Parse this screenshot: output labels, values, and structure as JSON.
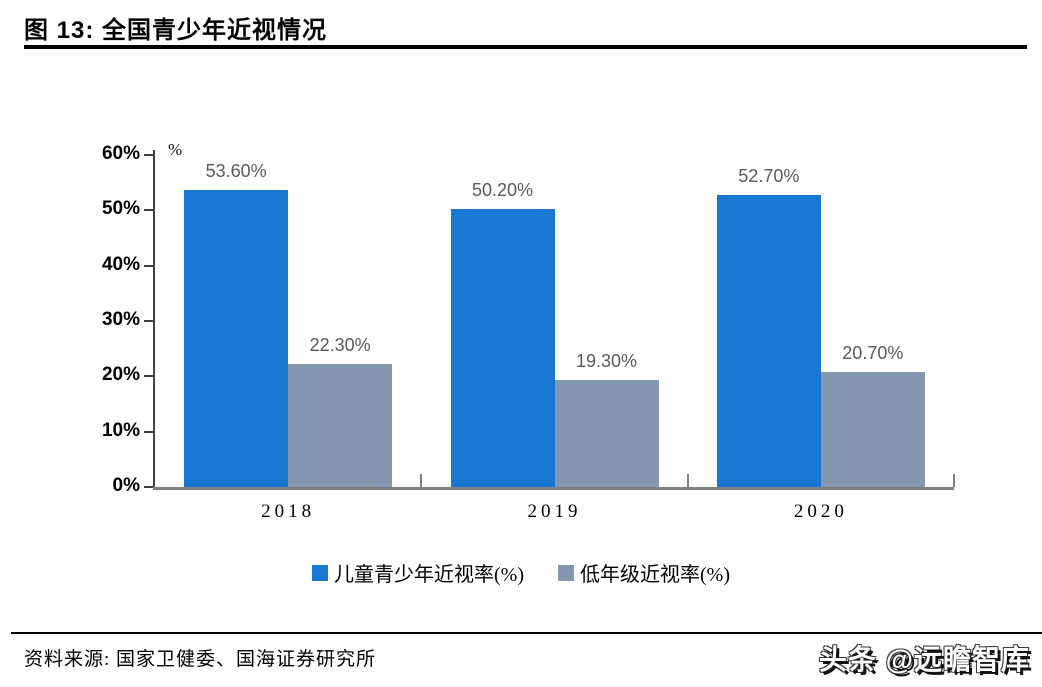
{
  "header": {
    "title": "图 13:  全国青少年近视情况"
  },
  "footer": {
    "source_note": "资料来源:  国家卫健委、国海证券研究所",
    "watermark": "头条 @远瞻智库"
  },
  "colors": {
    "series_blue": "#1777D1",
    "series_gray": "#8496B0",
    "value_label_gray": "#595959",
    "y_axis": "#404040",
    "x_axis": "#7f7f7f"
  },
  "chart_data": {
    "type": "bar",
    "title": "全国青少年近视情况",
    "xlabel": "",
    "ylabel": "%",
    "unit_label": "%",
    "categories": [
      "2018",
      "2019",
      "2020"
    ],
    "series": [
      {
        "name": "儿童青少年近视率(%)",
        "color": "#1777D1",
        "values": [
          53.6,
          50.2,
          52.7
        ],
        "data_labels": [
          "53.60%",
          "50.20%",
          "52.70%"
        ]
      },
      {
        "name": "低年级近视率(%)",
        "color": "#8496B0",
        "values": [
          22.3,
          19.3,
          20.7
        ],
        "data_labels": [
          "22.30%",
          "19.30%",
          "20.70%"
        ]
      }
    ],
    "ylim": [
      0,
      60
    ],
    "ytick_step": 10,
    "ytick_labels": [
      "0%",
      "10%",
      "20%",
      "30%",
      "40%",
      "50%",
      "60%"
    ],
    "grid": false,
    "legend_position": "bottom"
  }
}
